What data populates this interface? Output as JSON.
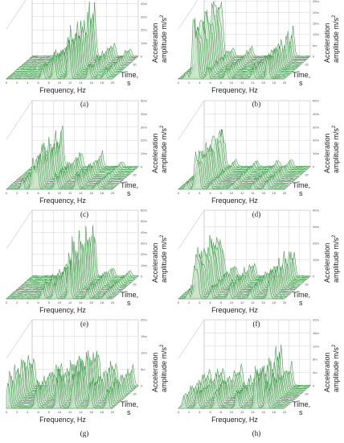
{
  "figure": {
    "frequency_label": "Frequency, Hz",
    "time_label_1": "Time,",
    "time_label_2": "s",
    "amplitude_label_1": "Acceleration",
    "amplitude_label_2": "amplitude m/s",
    "amplitude_label_sup": "2"
  },
  "style": {
    "line_color": "#2e8b3a",
    "fill_color": "#cfe8cf",
    "grid_color": "#c8c8c8",
    "axis_color": "#888888"
  },
  "chart_data": [
    {
      "type": "waterfall",
      "panel_label": "(a)",
      "x_ticks": [
        "0",
        "2",
        "4",
        "6",
        "8",
        "10",
        "12",
        "14",
        "16",
        "18",
        "20"
      ],
      "time_ticks": [
        "20",
        "40"
      ],
      "z_ticks": [
        "0",
        "10m",
        "20m",
        "30m",
        "40m",
        "50m"
      ],
      "zlim": [
        0,
        50
      ],
      "peaks": [
        [
          6.8,
          12
        ],
        [
          9.0,
          22
        ],
        [
          11.8,
          44
        ],
        [
          15.5,
          12
        ],
        [
          18.5,
          7
        ]
      ]
    },
    {
      "type": "waterfall",
      "panel_label": "(b)",
      "x_ticks": [
        "0",
        "2",
        "4",
        "6",
        "8",
        "10",
        "12",
        "14",
        "16",
        "18",
        "20"
      ],
      "time_ticks": [
        "20",
        "40"
      ],
      "z_ticks": [
        "0",
        "5m",
        "10m",
        "15m",
        "20m",
        "25m",
        "30m"
      ],
      "zlim": [
        0,
        30
      ],
      "peaks": [
        [
          1.5,
          4
        ],
        [
          2.8,
          29
        ],
        [
          3.4,
          22
        ],
        [
          5.5,
          5
        ],
        [
          9.0,
          5
        ],
        [
          14.0,
          6
        ],
        [
          16.8,
          13
        ]
      ]
    },
    {
      "type": "waterfall",
      "panel_label": "(c)",
      "x_ticks": [
        "0",
        "2",
        "4",
        "6",
        "8",
        "10",
        "12",
        "14",
        "16",
        "18",
        "20"
      ],
      "time_ticks": [
        "20",
        "40"
      ],
      "z_ticks": [
        "0",
        "10m",
        "20m",
        "30m",
        "40m",
        "50m"
      ],
      "zlim": [
        0,
        50
      ],
      "peaks": [
        [
          3.0,
          8
        ],
        [
          4.9,
          24
        ],
        [
          5.7,
          32
        ],
        [
          9.3,
          12
        ],
        [
          13.2,
          12
        ],
        [
          17.0,
          5
        ]
      ]
    },
    {
      "type": "waterfall",
      "panel_label": "(d)",
      "x_ticks": [
        "0",
        "2",
        "4",
        "6",
        "8",
        "10",
        "12",
        "14",
        "16",
        "18",
        "20"
      ],
      "time_ticks": [
        "20",
        "40"
      ],
      "z_ticks": [
        "0",
        "10m",
        "20m",
        "30m",
        "40m",
        "50m"
      ],
      "zlim": [
        0,
        50
      ],
      "peaks": [
        [
          1.5,
          6
        ],
        [
          3.2,
          30
        ],
        [
          3.8,
          26
        ],
        [
          6.0,
          6
        ],
        [
          10.0,
          5
        ],
        [
          14.0,
          6
        ],
        [
          16.5,
          8
        ]
      ]
    },
    {
      "type": "waterfall",
      "panel_label": "(e)",
      "x_ticks": [
        "0",
        "2",
        "4",
        "6",
        "8",
        "10",
        "12",
        "14",
        "16",
        "18",
        "20"
      ],
      "time_ticks": [
        "20",
        "40"
      ],
      "z_ticks": [
        "0",
        "10m",
        "20m",
        "30m",
        "40m",
        "50m",
        "60m"
      ],
      "zlim": [
        0,
        60
      ],
      "peaks": [
        [
          6.8,
          14
        ],
        [
          9.0,
          22
        ],
        [
          11.8,
          52
        ],
        [
          15.3,
          12
        ],
        [
          18.5,
          7
        ]
      ]
    },
    {
      "type": "waterfall",
      "panel_label": "(f)",
      "x_ticks": [
        "0",
        "2",
        "4",
        "6",
        "8",
        "10",
        "12",
        "14",
        "16",
        "18",
        "20"
      ],
      "time_ticks": [
        "20",
        "40"
      ],
      "z_ticks": [
        "0",
        "10m",
        "20m",
        "30m",
        "40m"
      ],
      "zlim": [
        0,
        40
      ],
      "peaks": [
        [
          1.8,
          6
        ],
        [
          3.0,
          30
        ],
        [
          3.6,
          22
        ],
        [
          6.0,
          8
        ],
        [
          9.5,
          10
        ],
        [
          13.5,
          8
        ],
        [
          17.0,
          19
        ]
      ]
    },
    {
      "type": "waterfall",
      "panel_label": "(g)",
      "x_ticks": [
        "0",
        "2",
        "4",
        "6",
        "8",
        "10",
        "12",
        "14",
        "16",
        "18",
        "20"
      ],
      "time_ticks": [
        "20",
        "40"
      ],
      "z_ticks": [
        "0",
        "5m",
        "10m",
        "15m",
        "20m"
      ],
      "zlim": [
        0,
        20
      ],
      "peaks": [
        [
          0.3,
          12
        ],
        [
          5.5,
          8
        ],
        [
          9.5,
          11
        ],
        [
          12.5,
          14
        ],
        [
          15.8,
          9
        ],
        [
          19.0,
          7
        ]
      ]
    },
    {
      "type": "waterfall",
      "panel_label": "(h)",
      "x_ticks": [
        "0",
        "2",
        "4",
        "6",
        "8",
        "10",
        "12",
        "14",
        "16",
        "18",
        "20"
      ],
      "time_ticks": [
        "20",
        "40"
      ],
      "z_ticks": [
        "0",
        "4m",
        "8m",
        "12m",
        "16m",
        "20m"
      ],
      "zlim": [
        0,
        20
      ],
      "peaks": [
        [
          1.0,
          5
        ],
        [
          3.5,
          6
        ],
        [
          7.0,
          7
        ],
        [
          11.0,
          6
        ],
        [
          14.5,
          13
        ],
        [
          16.5,
          8
        ]
      ]
    }
  ]
}
